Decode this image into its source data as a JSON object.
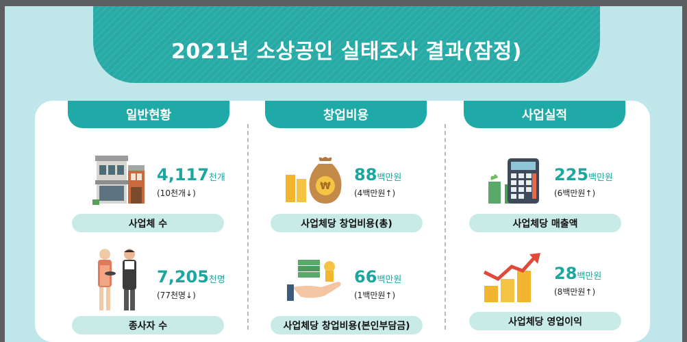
{
  "title": "2021년 소상공인 실태조사 결과(잠정)",
  "sections": [
    {
      "heading": "일반현황",
      "stats": [
        {
          "icon": "shop-building-icon",
          "value": "4,117",
          "unit": "천개",
          "delta": "(10천개↓)",
          "label": "사업체 수"
        },
        {
          "icon": "workers-icon",
          "value": "7,205",
          "unit": "천명",
          "delta": "(77천명↓)",
          "label": "종사자 수"
        }
      ]
    },
    {
      "heading": "창업비용",
      "stats": [
        {
          "icon": "money-bag-coins-icon",
          "value": "88",
          "unit": "백만원",
          "delta": "(4백만원↑)",
          "label": "사업체당 창업비용(총)"
        },
        {
          "icon": "hand-money-icon",
          "value": "66",
          "unit": "백만원",
          "delta": "(1백만원↑)",
          "label": "사업체당 창업비용(본인부담금)"
        }
      ]
    },
    {
      "heading": "사업실적",
      "stats": [
        {
          "icon": "calculator-cash-icon",
          "value": "225",
          "unit": "백만원",
          "delta": "(6백만원↑)",
          "label": "사업체당 매출액"
        },
        {
          "icon": "coins-growth-arrow-icon",
          "value": "28",
          "unit": "백만원",
          "delta": "(8백만원↑)",
          "label": "사업체당 영업이익"
        }
      ]
    }
  ]
}
